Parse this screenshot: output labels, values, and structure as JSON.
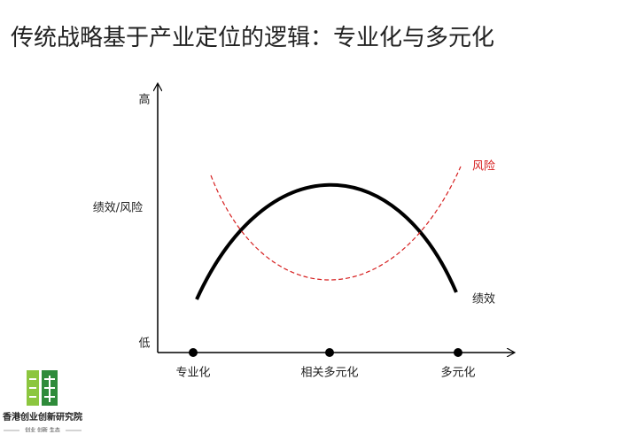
{
  "header": {
    "title": "传统战略基于产业定位的逻辑：专业化与多元化"
  },
  "axes": {
    "y_labels": {
      "high": "高",
      "middle": "绩效/风险",
      "low": "低"
    },
    "x_labels": [
      "专业化",
      "相关多元化",
      "多元化"
    ]
  },
  "curves": {
    "risk": "风险",
    "performance": "绩效"
  },
  "logo": {
    "name": "香港创业创新研究院",
    "tagline": "创业 创新 生态"
  }
}
